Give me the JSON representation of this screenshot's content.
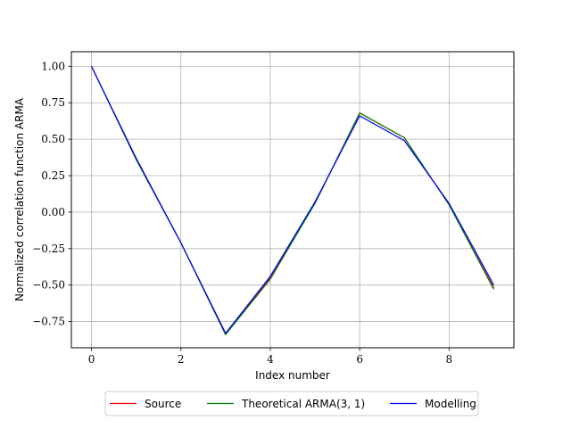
{
  "chart_data": {
    "type": "line",
    "title": "",
    "xlabel": "Index number",
    "ylabel": "Normalized correlation function ARMA",
    "xlim": [
      -0.45,
      9.45
    ],
    "ylim": [
      -0.93,
      1.1
    ],
    "xticks": [
      0,
      2,
      4,
      6,
      8
    ],
    "xtick_labels": [
      "0",
      "2",
      "4",
      "6",
      "8"
    ],
    "yticks": [
      -0.75,
      -0.5,
      -0.25,
      0.0,
      0.25,
      0.5,
      0.75,
      1.0
    ],
    "ytick_labels": [
      "−0.75",
      "−0.50",
      "−0.25",
      "0.00",
      "0.25",
      "0.50",
      "0.75",
      "1.00"
    ],
    "grid": true,
    "legend_position": "bottom-center, outside",
    "x": [
      0,
      1,
      2,
      3,
      4,
      5,
      6,
      7,
      8,
      9
    ],
    "series": [
      {
        "name": "Source",
        "color": "#ff0000",
        "values": [
          1.0,
          0.36,
          -0.21,
          -0.84,
          -0.45,
          0.06,
          0.68,
          0.51,
          0.05,
          -0.52
        ]
      },
      {
        "name": "Theoretical ARMA(3, 1)",
        "color": "#008000",
        "values": [
          1.0,
          0.36,
          -0.21,
          -0.84,
          -0.46,
          0.06,
          0.68,
          0.51,
          0.05,
          -0.53
        ]
      },
      {
        "name": "Modelling",
        "color": "#0000ff",
        "values": [
          1.0,
          0.37,
          -0.21,
          -0.83,
          -0.44,
          0.07,
          0.66,
          0.49,
          0.06,
          -0.5
        ]
      }
    ]
  }
}
